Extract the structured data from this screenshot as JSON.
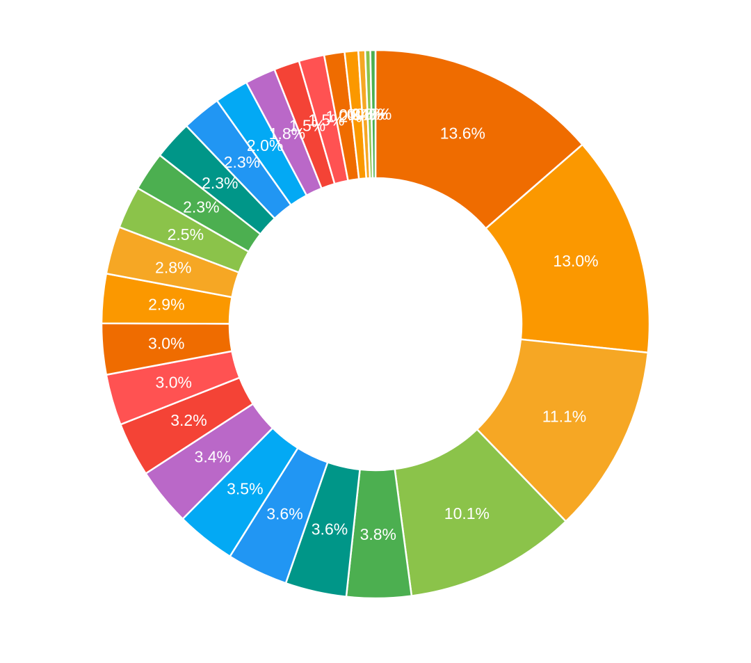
{
  "chart_data": {
    "type": "pie",
    "donut": true,
    "title": "",
    "legend": "none",
    "slices": [
      {
        "value": 13.6,
        "label": "13.6%",
        "color": "#EF6C00"
      },
      {
        "value": 13.0,
        "label": "13.0%",
        "color": "#FB9800"
      },
      {
        "value": 11.1,
        "label": "11.1%",
        "color": "#F6A724"
      },
      {
        "value": 10.1,
        "label": "10.1%",
        "color": "#8BC34A"
      },
      {
        "value": 3.8,
        "label": "3.8%",
        "color": "#4CAF50"
      },
      {
        "value": 3.6,
        "label": "3.6%",
        "color": "#009688"
      },
      {
        "value": 3.6,
        "label": "3.6%",
        "color": "#2196F3"
      },
      {
        "value": 3.5,
        "label": "3.5%",
        "color": "#03A9F4"
      },
      {
        "value": 3.4,
        "label": "3.4%",
        "color": "#BA68C8"
      },
      {
        "value": 3.2,
        "label": "3.2%",
        "color": "#F44336"
      },
      {
        "value": 3.0,
        "label": "3.0%",
        "color": "#FF5252"
      },
      {
        "value": 3.0,
        "label": "3.0%",
        "color": "#EF6C00"
      },
      {
        "value": 2.9,
        "label": "2.9%",
        "color": "#FB9800"
      },
      {
        "value": 2.8,
        "label": "2.8%",
        "color": "#F6A724"
      },
      {
        "value": 2.5,
        "label": "2.5%",
        "color": "#8BC34A"
      },
      {
        "value": 2.3,
        "label": "2.3%",
        "color": "#4CAF50"
      },
      {
        "value": 2.3,
        "label": "2.3%",
        "color": "#009688"
      },
      {
        "value": 2.3,
        "label": "2.3%",
        "color": "#2196F3"
      },
      {
        "value": 2.0,
        "label": "2.0%",
        "color": "#03A9F4"
      },
      {
        "value": 1.8,
        "label": "1.8%",
        "color": "#BA68C8"
      },
      {
        "value": 1.5,
        "label": "1.5%",
        "color": "#F44336"
      },
      {
        "value": 1.5,
        "label": "1.5%",
        "color": "#FF5252"
      },
      {
        "value": 1.2,
        "label": "1.2%",
        "color": "#EF6C00"
      },
      {
        "value": 0.8,
        "label": "0.8%",
        "color": "#FB9800"
      },
      {
        "value": 0.4,
        "label": "0.4%",
        "color": "#F6A724"
      },
      {
        "value": 0.3,
        "label": "0.3%",
        "color": "#8BC34A"
      },
      {
        "value": 0.3,
        "label": "0.3%",
        "color": "#4CAF50"
      }
    ]
  }
}
